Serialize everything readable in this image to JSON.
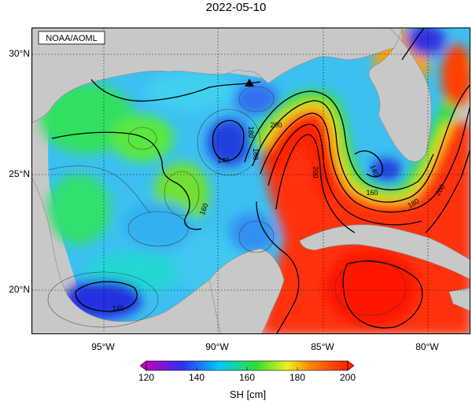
{
  "title": "2022-05-10",
  "credit": "NOAA/AOML",
  "lat_labels": [
    "30°N",
    "25°N",
    "20°N"
  ],
  "lon_labels": [
    "95°W",
    "90°W",
    "85°W",
    "80°W"
  ],
  "contour_labels": {
    "c140_mid": "140",
    "c160_west": "160",
    "c180_loop": "180",
    "c160_loop": "160",
    "c200_loop": "200",
    "c200_core": "200",
    "c200_east": "200",
    "c180_east": "180",
    "c160_east": "160",
    "c140_fl": "140",
    "c140_sw": "140"
  },
  "colorbar": {
    "ticks": [
      "120",
      "140",
      "160",
      "180",
      "200"
    ],
    "units": "SH [cm]",
    "colors": [
      "#c000c0",
      "#3030f0",
      "#00c8ff",
      "#30e030",
      "#f0f020",
      "#ff8000",
      "#ff2000"
    ]
  },
  "marker": "triangle"
}
